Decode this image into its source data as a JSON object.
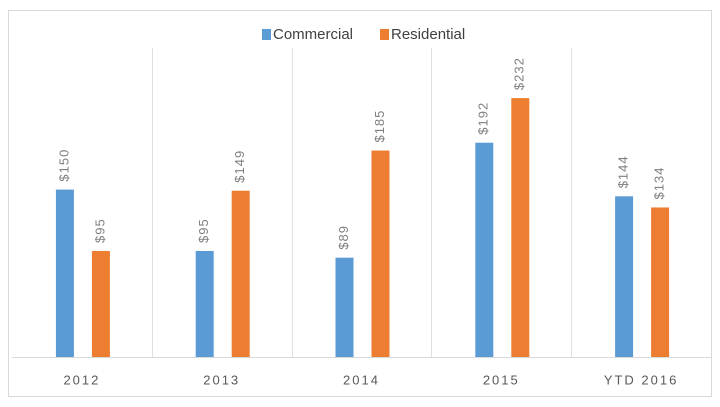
{
  "chart_data": {
    "type": "bar",
    "categories": [
      "2012",
      "2013",
      "2014",
      "2015",
      "YTD 2016"
    ],
    "series": [
      {
        "name": "Commercial",
        "color": "#5b9bd5",
        "values": [
          150,
          95,
          89,
          192,
          144
        ],
        "value_labels": [
          "$150",
          "$95",
          "$89",
          "$192",
          "$144"
        ]
      },
      {
        "name": "Residential",
        "color": "#ed7d31",
        "values": [
          95,
          149,
          185,
          232,
          134
        ],
        "value_labels": [
          "$95",
          "$149",
          "$185",
          "$232",
          "$134"
        ]
      }
    ],
    "ylim": [
      0,
      250
    ],
    "legend": "top"
  }
}
